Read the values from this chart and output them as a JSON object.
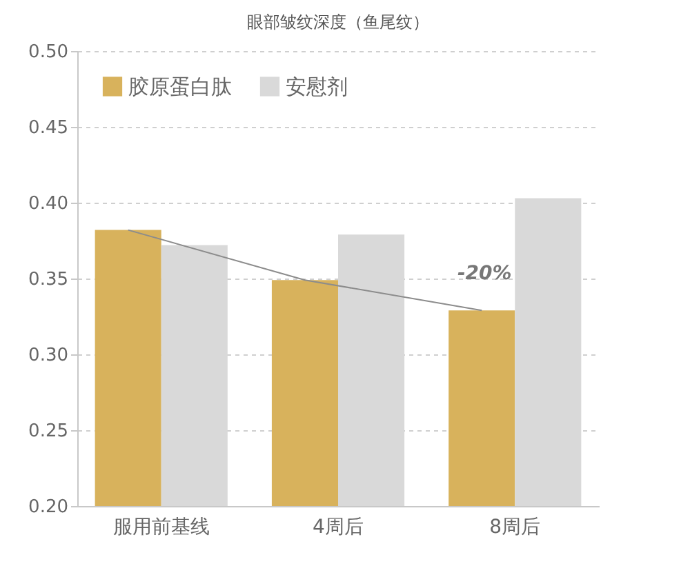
{
  "chart_data": {
    "type": "bar",
    "title": "眼部皱纹深度（鱼尾纹）",
    "categories": [
      "服用前基线",
      "4周后",
      "8周后"
    ],
    "series": [
      {
        "name": "胶原蛋白肽",
        "color": "#d8b25c",
        "values": [
          0.382,
          0.349,
          0.329
        ]
      },
      {
        "name": "安慰剂",
        "color": "#d9d9d9",
        "values": [
          0.372,
          0.379,
          0.403
        ]
      },
      {
        "type": "line",
        "color": "#8c8c8c",
        "values": [
          0.382,
          0.349,
          0.329
        ]
      }
    ],
    "annotations": [
      {
        "text": "-20%",
        "x": "8周后",
        "y": 0.353
      }
    ],
    "ylim": [
      0.2,
      0.5
    ],
    "yticks": [
      {
        "value": 0.2,
        "label": "0.20"
      },
      {
        "value": 0.25,
        "label": "0.25"
      },
      {
        "value": 0.3,
        "label": "0.30"
      },
      {
        "value": 0.35,
        "label": "0.35"
      },
      {
        "value": 0.4,
        "label": "0.40"
      },
      {
        "value": 0.45,
        "label": "0.45"
      },
      {
        "value": 0.5,
        "label": "0.50"
      }
    ],
    "grid": "y",
    "legend": "top left",
    "marker": "none",
    "line_style": "solid"
  }
}
